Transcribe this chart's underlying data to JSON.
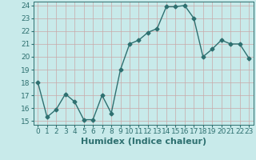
{
  "x": [
    0,
    1,
    2,
    3,
    4,
    5,
    6,
    7,
    8,
    9,
    10,
    11,
    12,
    13,
    14,
    15,
    16,
    17,
    18,
    19,
    20,
    21,
    22,
    23
  ],
  "y": [
    18,
    15.3,
    15.9,
    17.1,
    16.5,
    15.1,
    15.1,
    17.0,
    15.6,
    19.0,
    21.0,
    21.3,
    21.9,
    22.2,
    23.9,
    23.9,
    24.0,
    23.0,
    20.0,
    20.6,
    21.3,
    21.0,
    21.0,
    19.9
  ],
  "xlabel": "Humidex (Indice chaleur)",
  "ylim_min": 15,
  "ylim_max": 24,
  "xlim_min": 0,
  "xlim_max": 23,
  "yticks": [
    15,
    16,
    17,
    18,
    19,
    20,
    21,
    22,
    23,
    24
  ],
  "xticks": [
    0,
    1,
    2,
    3,
    4,
    5,
    6,
    7,
    8,
    9,
    10,
    11,
    12,
    13,
    14,
    15,
    16,
    17,
    18,
    19,
    20,
    21,
    22,
    23
  ],
  "line_color": "#2e7070",
  "marker": "D",
  "marker_size": 2.5,
  "bg_color": "#c8eaea",
  "grid_color": "#c8a8a8",
  "line_width": 1.0,
  "xlabel_fontsize": 8,
  "tick_fontsize": 6.5
}
